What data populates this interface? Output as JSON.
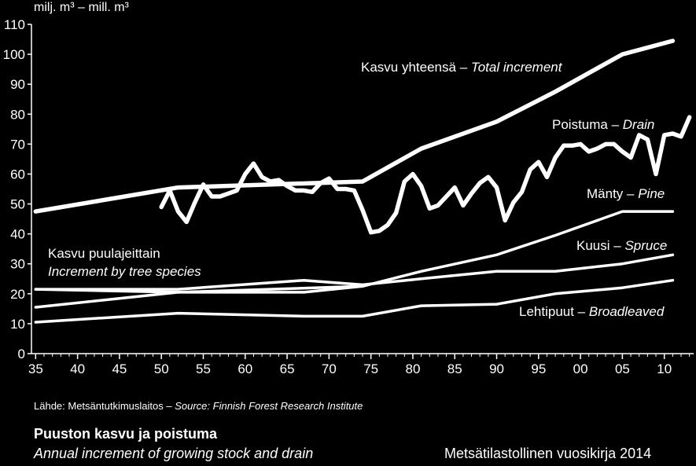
{
  "chart_data": {
    "type": "line",
    "ylabel": "milj. m³ – mill. m³",
    "ylim": [
      0,
      110
    ],
    "yticks": [
      0,
      10,
      20,
      30,
      40,
      50,
      60,
      70,
      80,
      90,
      100,
      110
    ],
    "xlim": [
      1934.5,
      2013.5
    ],
    "xtick_labels": [
      "35",
      "40",
      "45",
      "50",
      "55",
      "60",
      "65",
      "70",
      "75",
      "80",
      "85",
      "90",
      "95",
      "00",
      "05",
      "10"
    ],
    "xtick_values": [
      1935,
      1940,
      1945,
      1950,
      1955,
      1960,
      1965,
      1970,
      1975,
      1980,
      1985,
      1990,
      1995,
      2000,
      2005,
      2010
    ],
    "grid": false,
    "series": [
      {
        "id": "total",
        "name_fi": "Kasvu yhteensä – ",
        "name_en": "Total increment",
        "x": [
          1935,
          1952,
          1974,
          1981,
          1990,
          1997,
          2005,
          2011
        ],
        "y": [
          47.5,
          55.5,
          57.5,
          68.5,
          77.5,
          87.5,
          100,
          104.5
        ]
      },
      {
        "id": "drain",
        "name_fi": "Poistuma – ",
        "name_en": "Drain",
        "x": [
          1950,
          1951,
          1952,
          1953,
          1954,
          1955,
          1956,
          1957,
          1958,
          1959,
          1960,
          1961,
          1962,
          1963,
          1964,
          1965,
          1966,
          1967,
          1968,
          1969,
          1970,
          1971,
          1972,
          1973,
          1974,
          1975,
          1976,
          1977,
          1978,
          1979,
          1980,
          1981,
          1982,
          1983,
          1984,
          1985,
          1986,
          1987,
          1988,
          1989,
          1990,
          1991,
          1992,
          1993,
          1994,
          1995,
          1996,
          1997,
          1998,
          1999,
          2000,
          2001,
          2002,
          2003,
          2004,
          2005,
          2006,
          2007,
          2008,
          2009,
          2010,
          2011,
          2012,
          2013
        ],
        "y": [
          49,
          54.5,
          47.5,
          44,
          50.5,
          56.5,
          52.5,
          52.5,
          53.5,
          54.5,
          60,
          63.5,
          59,
          57.5,
          58,
          56,
          54.5,
          54.5,
          54,
          57,
          58.5,
          55,
          55,
          54.5,
          48,
          40.5,
          41,
          43,
          47,
          57.5,
          60,
          56,
          48.5,
          49.5,
          52.5,
          55.5,
          49.5,
          53.5,
          57,
          59,
          55.5,
          44.5,
          50.5,
          54,
          61.5,
          64,
          59,
          65.5,
          69.5,
          69.5,
          70,
          67.5,
          68.5,
          70,
          70,
          67.5,
          65.5,
          73,
          71.5,
          60,
          73,
          73.5,
          72.5,
          79
        ]
      },
      {
        "id": "pine",
        "name_fi": "Mänty – ",
        "name_en": "Pine",
        "x": [
          1935,
          1952,
          1974,
          1981,
          1990,
          1997,
          2005,
          2011
        ],
        "y": [
          15.5,
          20.5,
          22.5,
          27.5,
          33,
          39.5,
          47.5,
          47.5
        ]
      },
      {
        "id": "spruce",
        "name_fi": "Kuusi – ",
        "name_en": "Spruce",
        "x": [
          1935,
          1952,
          1967,
          1974,
          1981,
          1990,
          1997,
          2005,
          2011
        ],
        "y": [
          21.5,
          21.5,
          24.5,
          23,
          25,
          27.5,
          27.5,
          30,
          33
        ]
      },
      {
        "id": "broadleaved",
        "name_fi": "Lehtipuut – ",
        "name_en": "Broadleaved",
        "x": [
          1935,
          1952,
          1967,
          1974,
          1981,
          1990,
          1997,
          2005,
          2011
        ],
        "y": [
          10.5,
          13.5,
          12.5,
          12.5,
          16,
          16.5,
          20,
          22,
          24.5
        ]
      },
      {
        "id": "lower",
        "x": [
          1935,
          1952,
          1967,
          1974
        ],
        "y": [
          21.5,
          20.5,
          20.5,
          22.5
        ]
      }
    ],
    "annotations": {
      "species_fi": "Kasvu puulajeittain",
      "species_en": "Increment by tree species"
    }
  },
  "source": {
    "prefix": "Lähde: Metsäntutkimuslaitos – ",
    "text": "Source: Finnish Forest Research Institute"
  },
  "caption": {
    "title": "Puuston kasvu ja poistuma",
    "subtitle": "Annual increment of growing stock and drain",
    "publication": "Metsätilastollinen vuosikirja 2014"
  }
}
